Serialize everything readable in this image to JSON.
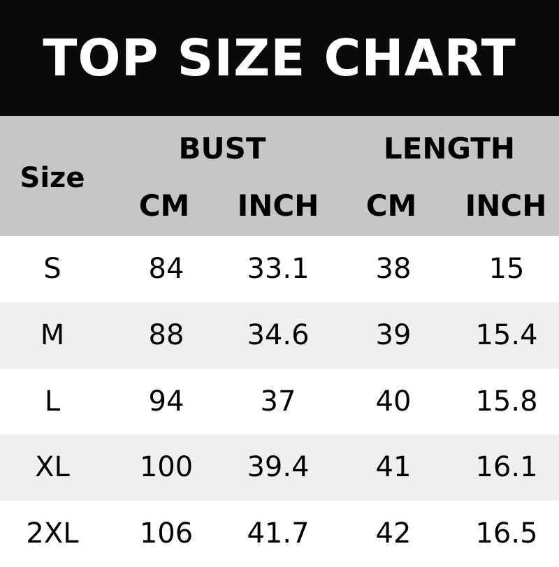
{
  "title": "TOP SIZE CHART",
  "chart_data": {
    "type": "table",
    "title": "TOP SIZE CHART",
    "header": {
      "size": "Size",
      "groups": [
        "BUST",
        "LENGTH"
      ],
      "units": [
        "CM",
        "INCH",
        "CM",
        "INCH"
      ]
    },
    "rows": [
      [
        "S",
        "84",
        "33.1",
        "38",
        "15"
      ],
      [
        "M",
        "88",
        "34.6",
        "39",
        "15.4"
      ],
      [
        "L",
        "94",
        "37",
        "40",
        "15.8"
      ],
      [
        "XL",
        "100",
        "39.4",
        "41",
        "16.1"
      ],
      [
        "2XL",
        "106",
        "41.7",
        "42",
        "16.5"
      ]
    ]
  },
  "colors": {
    "title_bg": "#0a0a0a",
    "header_bg": "#c6c6c6",
    "alt_row": "#efefef"
  }
}
